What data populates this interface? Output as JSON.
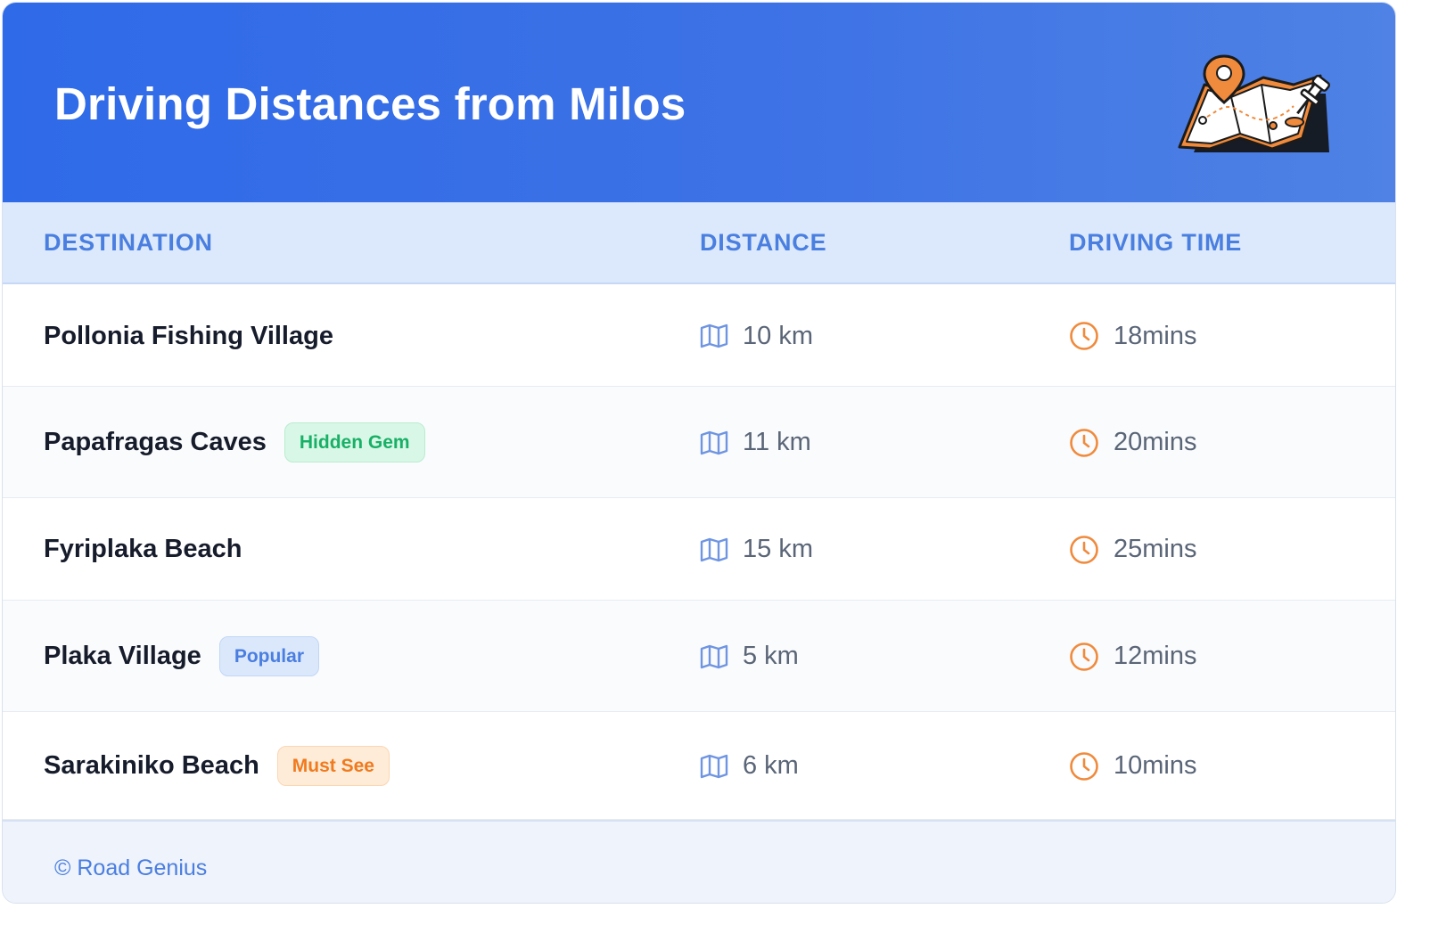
{
  "title": "Driving Distances from Milos",
  "illustration": "folded-map-with-pins-icon",
  "colors": {
    "header_start": "#2f6ae8",
    "header_end": "#4f82e4",
    "accent_blue": "#4a7fe0",
    "accent_orange": "#f08a3c"
  },
  "columns": {
    "destination": "DESTINATION",
    "distance": "DISTANCE",
    "time": "DRIVING TIME"
  },
  "rows": [
    {
      "destination": "Pollonia Fishing Village",
      "badge": null,
      "distance": "10 km",
      "time": "18mins"
    },
    {
      "destination": "Papafragas Caves",
      "badge": "Hidden Gem",
      "badge_style": "green",
      "distance": "11 km",
      "time": "20mins"
    },
    {
      "destination": "Fyriplaka Beach",
      "badge": null,
      "distance": "15 km",
      "time": "25mins"
    },
    {
      "destination": "Plaka Village",
      "badge": "Popular",
      "badge_style": "blue",
      "distance": "5 km",
      "time": "12mins"
    },
    {
      "destination": "Sarakiniko Beach",
      "badge": "Must See",
      "badge_style": "orange",
      "distance": "6 km",
      "time": "10mins"
    }
  ],
  "icons": {
    "distance": "map-icon",
    "time": "clock-icon"
  },
  "footer": {
    "text": "© Road Genius"
  }
}
